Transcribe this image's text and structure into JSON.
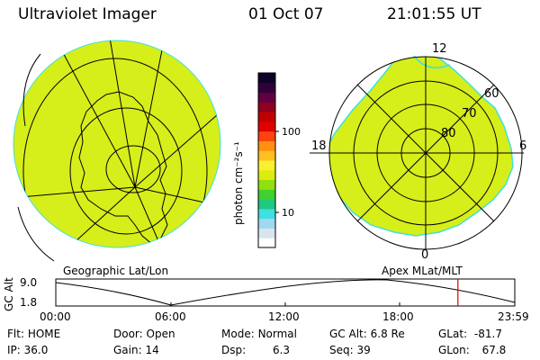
{
  "header": {
    "title": "Ultraviolet Imager",
    "date": "01 Oct 07",
    "time": "21:01:55 UT"
  },
  "colorbar": {
    "unit_label": "photon cm⁻²s⁻¹",
    "ticks": [
      "100",
      "10"
    ],
    "colors": [
      "#ffffff",
      "#d8e4ee",
      "#a0d8f0",
      "#40e0e0",
      "#20c880",
      "#40d030",
      "#90e010",
      "#dcec10",
      "#f8f030",
      "#ffc020",
      "#ff9010",
      "#ff4010",
      "#e00000",
      "#c00000",
      "#900020",
      "#600040",
      "#30003a",
      "#10002a"
    ]
  },
  "left_panel": {
    "label": "Geographic Lat/Lon",
    "fill_color": "#d6ee1a"
  },
  "right_panel": {
    "label": "Apex MLat/MLT",
    "mlt_labels": {
      "top": "12",
      "left": "18",
      "right": "6",
      "bottom": "0"
    },
    "lat_labels": [
      "60",
      "70",
      "80"
    ],
    "fill_color": "#d6ee1a"
  },
  "altitude_plot": {
    "ylabel": "GC Alt",
    "yticks": [
      "9.0",
      "1.8"
    ],
    "xticks": [
      "00:00",
      "06:00",
      "12:00",
      "18:00",
      "23:59"
    ],
    "marker_color": "#e00000",
    "marker_time_fraction": 0.876
  },
  "status": {
    "flt_label": "Flt:",
    "flt_value": "HOME",
    "ip_label": "IP:",
    "ip_value": "36.0",
    "door_label": "Door:",
    "door_value": "Open",
    "gain_label": "Gain:",
    "gain_value": "14",
    "mode_label": "Mode:",
    "mode_value": "Normal",
    "dsp_label": "Dsp:",
    "dsp_value": "6.3",
    "gcalt_label": "GC Alt:",
    "gcalt_value": "6.8 Re",
    "seq_label": "Seq:",
    "seq_value": "39",
    "glat_label": "GLat:",
    "glat_value": "-81.7",
    "glon_label": "GLon:",
    "glon_value": "67.8"
  }
}
